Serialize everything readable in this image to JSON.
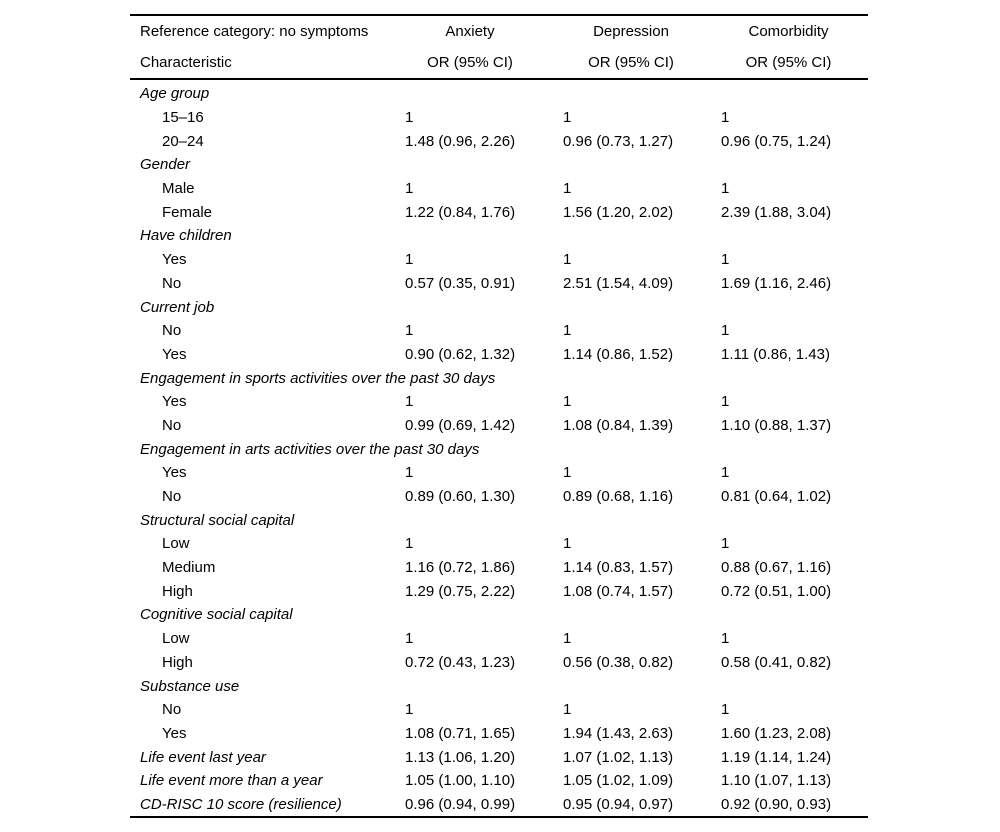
{
  "table": {
    "header": {
      "ref_line": "Reference category: no symptoms",
      "char_line": "Characteristic",
      "columns": [
        {
          "label": "Anxiety",
          "sub": "OR (95% CI)"
        },
        {
          "label": "Depression",
          "sub": "OR (95% CI)"
        },
        {
          "label": "Comorbidity",
          "sub": "OR (95% CI)"
        }
      ]
    },
    "rows": [
      {
        "type": "section",
        "label": "Age group"
      },
      {
        "type": "item",
        "label": "15–16",
        "values": [
          "1",
          "1",
          "1"
        ]
      },
      {
        "type": "item",
        "label": "20–24",
        "values": [
          "1.48 (0.96, 2.26)",
          "0.96 (0.73, 1.27)",
          "0.96 (0.75, 1.24)"
        ]
      },
      {
        "type": "section",
        "label": "Gender"
      },
      {
        "type": "item",
        "label": "Male",
        "values": [
          "1",
          "1",
          "1"
        ]
      },
      {
        "type": "item",
        "label": "Female",
        "values": [
          "1.22 (0.84, 1.76)",
          "1.56 (1.20, 2.02)",
          "2.39 (1.88, 3.04)"
        ]
      },
      {
        "type": "section",
        "label": "Have children"
      },
      {
        "type": "item",
        "label": "Yes",
        "values": [
          "1",
          "1",
          "1"
        ]
      },
      {
        "type": "item",
        "label": "No",
        "values": [
          "0.57 (0.35, 0.91)",
          "2.51 (1.54, 4.09)",
          "1.69 (1.16, 2.46)"
        ]
      },
      {
        "type": "section",
        "label": "Current job"
      },
      {
        "type": "item",
        "label": "No",
        "values": [
          "1",
          "1",
          "1"
        ]
      },
      {
        "type": "item",
        "label": "Yes",
        "values": [
          "0.90 (0.62, 1.32)",
          "1.14 (0.86, 1.52)",
          "1.11 (0.86, 1.43)"
        ]
      },
      {
        "type": "section",
        "label": "Engagement in sports activities over the past 30 days"
      },
      {
        "type": "item",
        "label": "Yes",
        "values": [
          "1",
          "1",
          "1"
        ]
      },
      {
        "type": "item",
        "label": "No",
        "values": [
          "0.99 (0.69, 1.42)",
          "1.08 (0.84, 1.39)",
          "1.10 (0.88, 1.37)"
        ]
      },
      {
        "type": "section",
        "label": "Engagement in arts activities over the past 30 days"
      },
      {
        "type": "item",
        "label": "Yes",
        "values": [
          "1",
          "1",
          "1"
        ]
      },
      {
        "type": "item",
        "label": "No",
        "values": [
          "0.89 (0.60, 1.30)",
          "0.89 (0.68, 1.16)",
          "0.81 (0.64, 1.02)"
        ]
      },
      {
        "type": "section",
        "label": "Structural social capital"
      },
      {
        "type": "item",
        "label": "Low",
        "values": [
          "1",
          "1",
          "1"
        ]
      },
      {
        "type": "item",
        "label": "Medium",
        "values": [
          "1.16 (0.72, 1.86)",
          "1.14 (0.83, 1.57)",
          "0.88 (0.67, 1.16)"
        ]
      },
      {
        "type": "item",
        "label": "High",
        "values": [
          "1.29 (0.75, 2.22)",
          "1.08 (0.74, 1.57)",
          "0.72 (0.51, 1.00)"
        ]
      },
      {
        "type": "section",
        "label": "Cognitive social capital"
      },
      {
        "type": "item",
        "label": "Low",
        "values": [
          "1",
          "1",
          "1"
        ]
      },
      {
        "type": "item",
        "label": "High",
        "values": [
          "0.72 (0.43, 1.23)",
          "0.56 (0.38, 0.82)",
          "0.58 (0.41, 0.82)"
        ]
      },
      {
        "type": "section",
        "label": "Substance use"
      },
      {
        "type": "item",
        "label": "No",
        "values": [
          "1",
          "1",
          "1"
        ]
      },
      {
        "type": "item",
        "label": "Yes",
        "values": [
          "1.08 (0.71, 1.65)",
          "1.94 (1.43, 2.63)",
          "1.60 (1.23, 2.08)"
        ]
      },
      {
        "type": "footer",
        "label": "Life event last year",
        "values": [
          "1.13 (1.06, 1.20)",
          "1.07 (1.02, 1.13)",
          "1.19 (1.14, 1.24)"
        ]
      },
      {
        "type": "footer",
        "label": "Life event more than a year",
        "values": [
          "1.05 (1.00, 1.10)",
          "1.05 (1.02, 1.09)",
          "1.10 (1.07, 1.13)"
        ]
      },
      {
        "type": "footer",
        "label": "CD-RISC 10 score (resilience)",
        "values": [
          "0.96 (0.94, 0.99)",
          "0.95 (0.94, 0.97)",
          "0.92 (0.90, 0.93)"
        ]
      }
    ]
  }
}
